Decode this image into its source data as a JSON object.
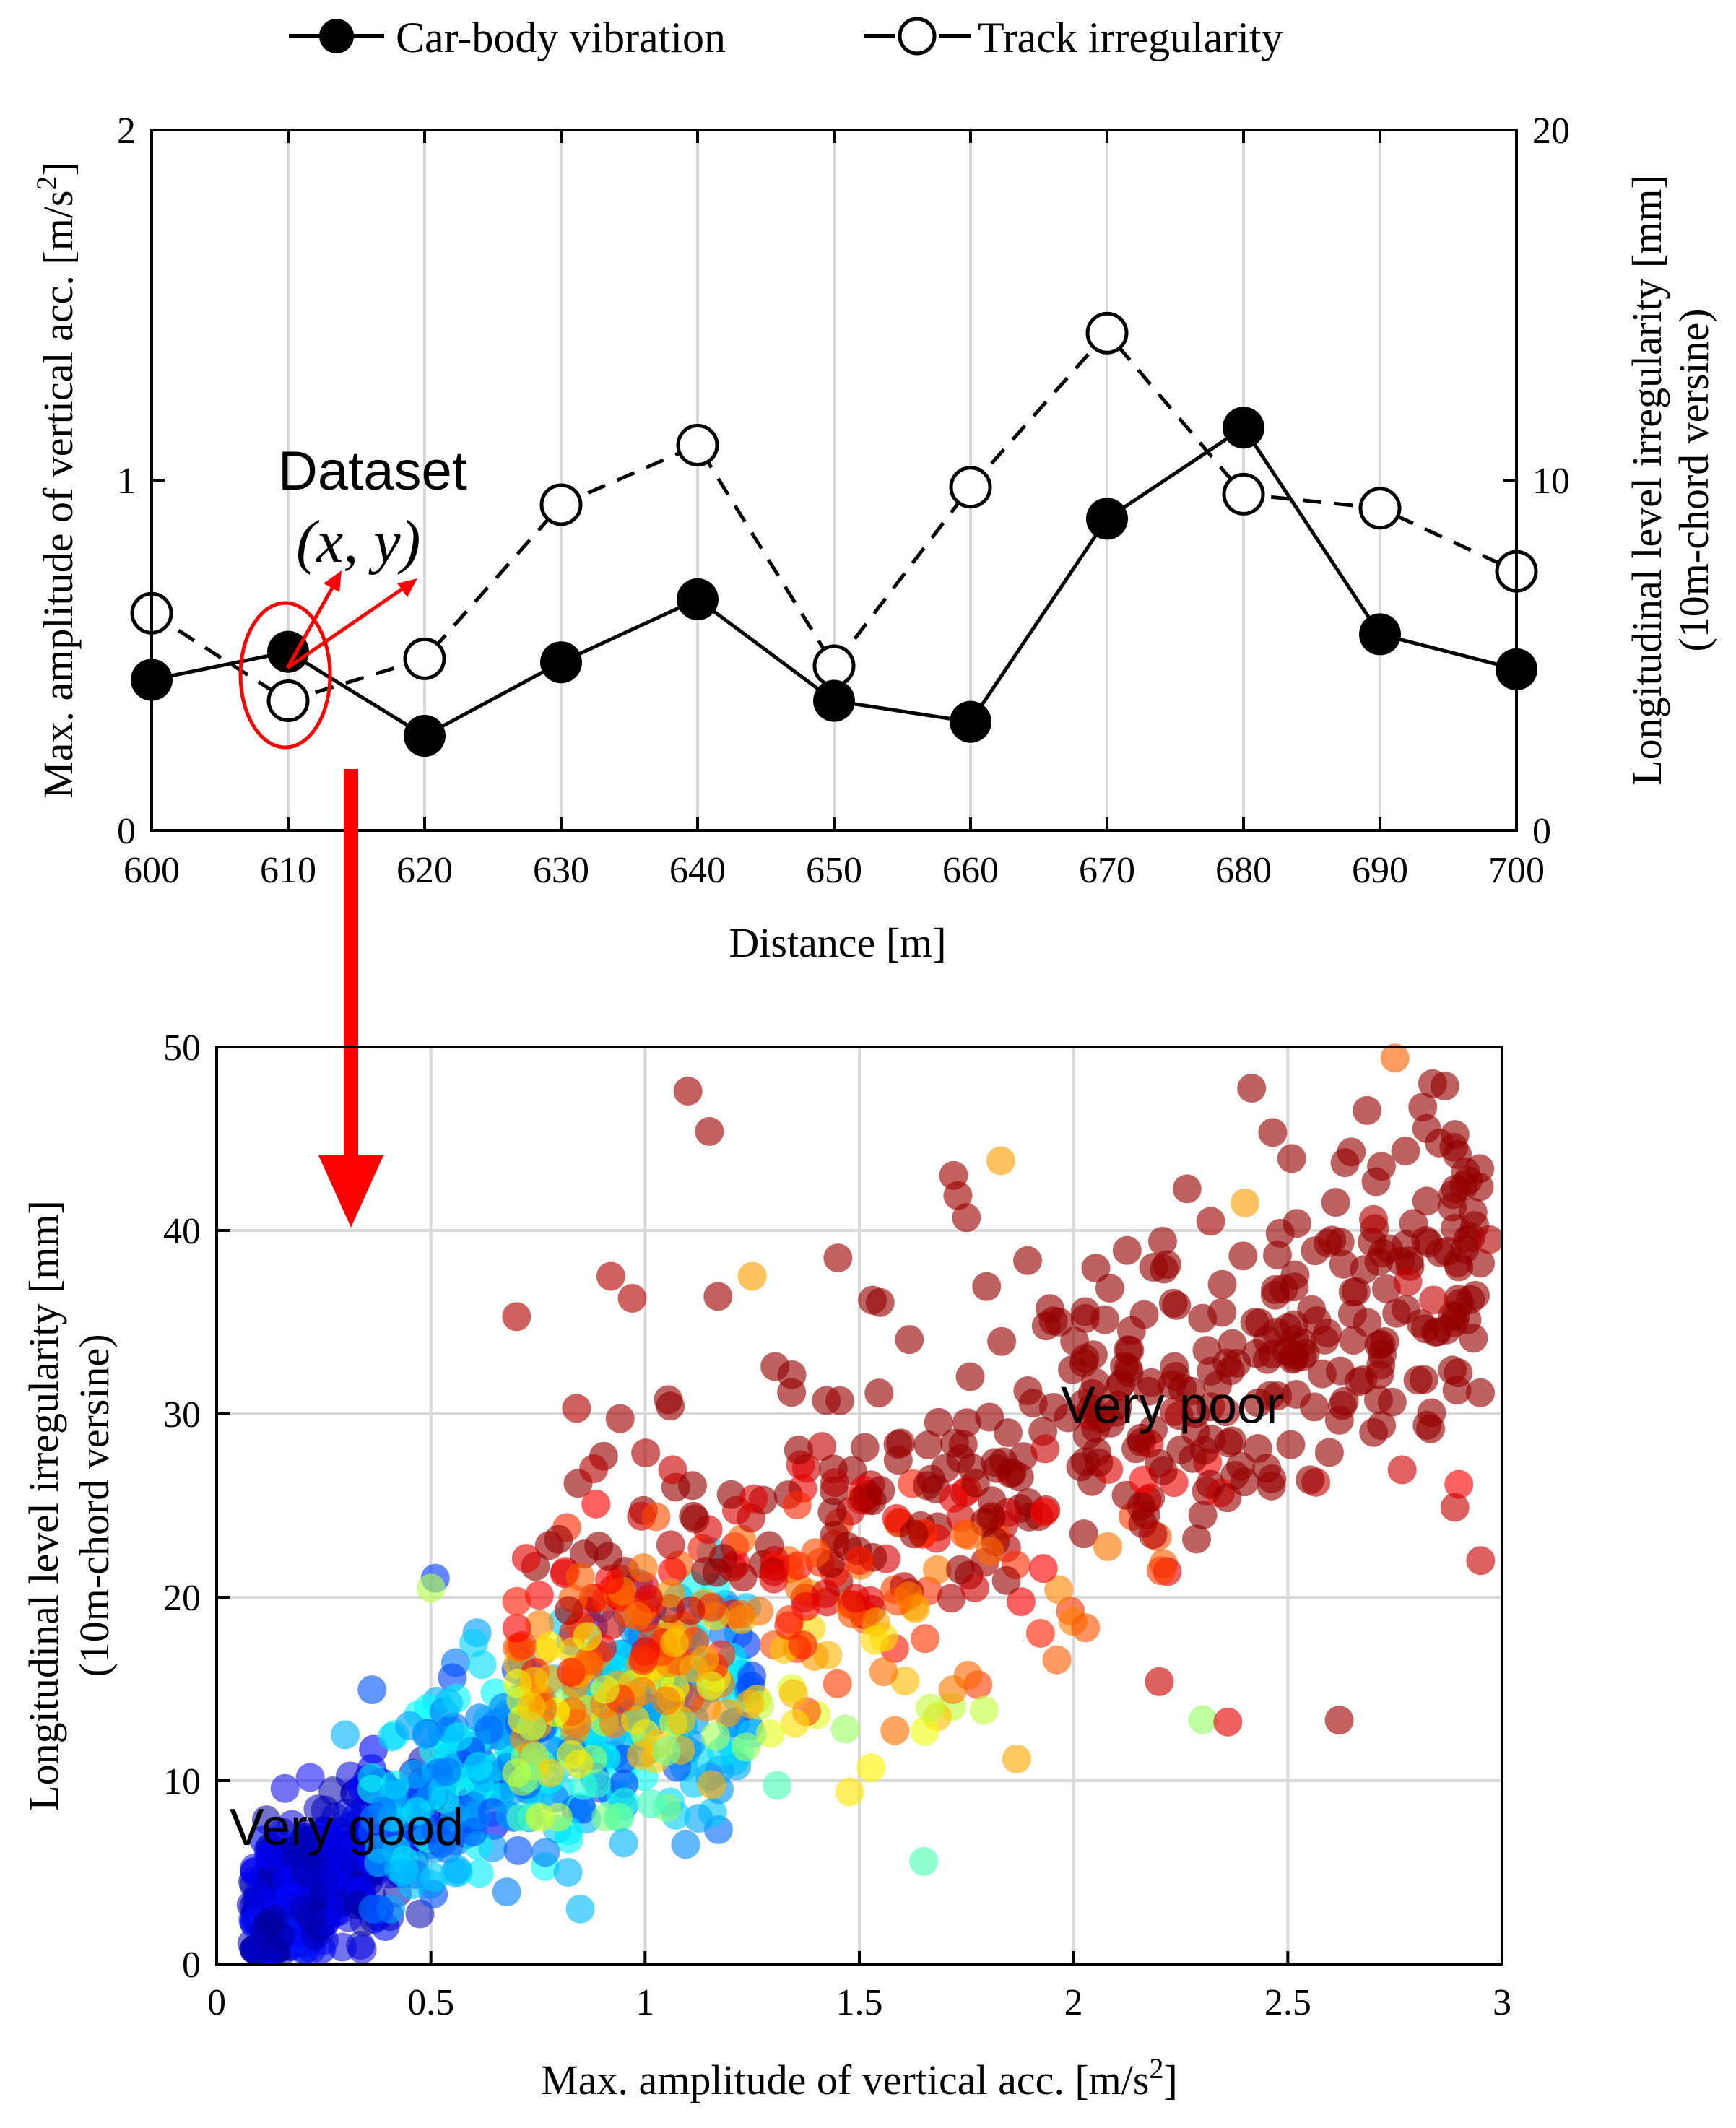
{
  "colors": {
    "axis": "#000000",
    "grid": "#d9d9d9",
    "annotation_red": "#ff0000",
    "marker_fill": "#000000",
    "marker_open": "#ffffff"
  },
  "chart_data": [
    {
      "type": "line",
      "legend": {
        "position": "top",
        "entries": [
          {
            "name": "Car-body vibration",
            "style": "solid line, filled circle"
          },
          {
            "name": "Track irregularity",
            "style": "dashed line, open circle"
          }
        ]
      },
      "xlabel": "Distance [m]",
      "xlim": [
        600,
        700
      ],
      "xticks": [
        "600",
        "610",
        "620",
        "630",
        "640",
        "650",
        "660",
        "670",
        "680",
        "690",
        "700"
      ],
      "ylabel_left": {
        "main": "Max. amplitude of vertical acc. [m/s",
        "sup": "2",
        "close": "]"
      },
      "ylim_left": [
        0,
        2
      ],
      "yticks_left": [
        "0",
        "1",
        "2"
      ],
      "ylabel_right": [
        "Longitudinal level irregularity [mm]",
        "(10m-chord versine)"
      ],
      "ylim_right": [
        0,
        20
      ],
      "yticks_right": [
        "0",
        "10",
        "20"
      ],
      "grid": "vertical",
      "series": [
        {
          "name": "Car-body vibration",
          "axis": "left",
          "x": [
            600,
            610,
            620,
            630,
            640,
            650,
            660,
            670,
            680,
            690,
            700
          ],
          "y": [
            0.43,
            0.51,
            0.27,
            0.48,
            0.66,
            0.37,
            0.31,
            0.89,
            1.15,
            0.56,
            0.46
          ]
        },
        {
          "name": "Track irregularity",
          "axis": "right",
          "x": [
            600,
            610,
            620,
            630,
            640,
            650,
            660,
            670,
            680,
            690,
            700
          ],
          "y": [
            6.2,
            3.7,
            4.9,
            9.3,
            11.0,
            4.7,
            9.8,
            14.2,
            9.6,
            9.2,
            7.4
          ]
        }
      ],
      "annotations": {
        "dataset_label": "Dataset",
        "dataset_math": "(x, y)",
        "highlight_x": 610
      }
    },
    {
      "type": "scatter",
      "xlabel": {
        "main": "Max. amplitude of vertical acc. [m/s",
        "sup": "2",
        "close": "]"
      },
      "xlim": [
        0,
        3
      ],
      "xticks": [
        "0",
        "0.5",
        "1",
        "1.5",
        "2",
        "2.5",
        "3"
      ],
      "ylabel": [
        "Longitudinal level irregularity [mm]",
        "(10m-chord versine)"
      ],
      "ylim": [
        0,
        50
      ],
      "yticks": [
        "0",
        "10",
        "20",
        "30",
        "40",
        "50"
      ],
      "grid": "both",
      "colormap": "jet (blue = very good, red = very poor)",
      "annotations": [
        {
          "text": "Very good",
          "x": 0.03,
          "y": 6.5
        },
        {
          "text": "Very poor",
          "x": 1.97,
          "y": 29.5
        }
      ],
      "distribution": {
        "count": 1400,
        "x_range": [
          0.05,
          3.0
        ],
        "y_range": [
          0.5,
          50
        ],
        "trend": "y increases roughly linearly with x; dense dark-blue cluster near (0.1-0.6, 1-12); yellow-green-orange band for x 0.8-1.8; red/orange at high y"
      },
      "points": [
        [
          0.12,
          2.2,
          0.02
        ],
        [
          0.15,
          1.5,
          0.03
        ],
        [
          0.2,
          3.0,
          0.05
        ],
        [
          0.25,
          4.5,
          0.07
        ],
        [
          0.3,
          12.5,
          0.3
        ],
        [
          0.45,
          13.0,
          0.28
        ],
        [
          0.6,
          17.5,
          0.33
        ],
        [
          0.5,
          20.5,
          0.55
        ],
        [
          0.82,
          5.0,
          0.3
        ],
        [
          0.95,
          6.6,
          0.3
        ],
        [
          0.84,
          30.3,
          0.95
        ],
        [
          0.7,
          35.3,
          0.95
        ],
        [
          0.88,
          27.0,
          0.95
        ],
        [
          0.92,
          37.5,
          0.95
        ],
        [
          0.97,
          36.3,
          0.95
        ],
        [
          1.1,
          47.6,
          0.97
        ],
        [
          1.15,
          45.4,
          0.97
        ],
        [
          1.17,
          36.4,
          0.97
        ],
        [
          1.72,
          43.0,
          0.97
        ],
        [
          1.73,
          41.9,
          0.97
        ],
        [
          1.75,
          40.7,
          0.97
        ],
        [
          1.83,
          43.8,
          0.72
        ],
        [
          2.75,
          49.4,
          0.78
        ],
        [
          2.7,
          40.6,
          0.95
        ],
        [
          2.97,
          39.5,
          0.95
        ],
        [
          2.32,
          40.5,
          0.97
        ],
        [
          2.4,
          41.5,
          0.72
        ],
        [
          2.78,
          37.2,
          0.93
        ],
        [
          2.84,
          36.2,
          0.93
        ],
        [
          2.95,
          22.0,
          0.93
        ],
        [
          2.89,
          24.9,
          0.93
        ],
        [
          1.65,
          5.6,
          0.45
        ],
        [
          1.45,
          38.5,
          0.97
        ],
        [
          1.25,
          37.5,
          0.72
        ],
        [
          1.3,
          21.0,
          0.9
        ],
        [
          1.5,
          22.0,
          0.85
        ],
        [
          1.72,
          25.4,
          0.9
        ],
        [
          2.62,
          13.3,
          0.97
        ],
        [
          2.36,
          13.2,
          0.9
        ],
        [
          2.2,
          15.4,
          0.93
        ]
      ]
    }
  ]
}
